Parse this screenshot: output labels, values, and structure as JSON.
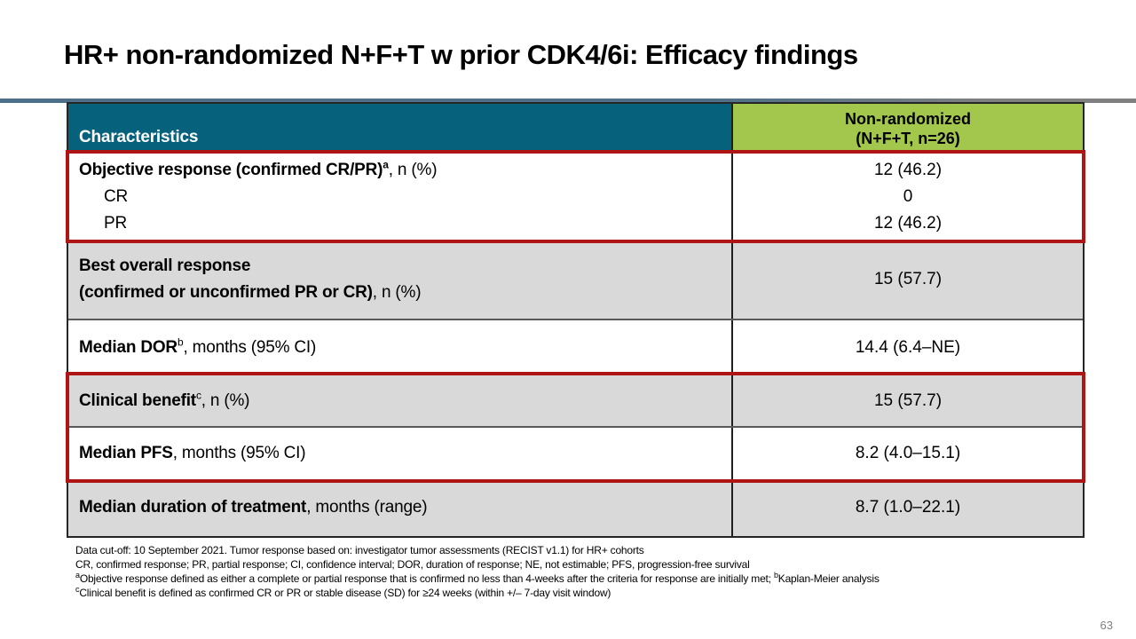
{
  "slide": {
    "title": "HR+ non-randomized N+F+T w prior CDK4/6i: Efficacy findings",
    "page_number": "63"
  },
  "table": {
    "header": {
      "characteristics": "Characteristics",
      "cohort_line1": "Non-randomized",
      "cohort_line2": "(N+F+T, n=26)"
    },
    "rows": [
      {
        "label_bold": "Objective response (confirmed CR/PR)",
        "label_sup": "a",
        "label_rest": ", n (%)",
        "value": "12 (46.2)",
        "subrows": [
          {
            "label": "CR",
            "value": "0"
          },
          {
            "label": "PR",
            "value": "12 (46.2)"
          }
        ]
      },
      {
        "label_bold_line1": "Best overall response",
        "label_bold_line2": "(confirmed or unconfirmed PR or CR)",
        "label_rest": ", n (%)",
        "value": "15 (57.7)"
      },
      {
        "label_bold": "Median DOR",
        "label_sup": "b",
        "label_rest": ", months (95% CI)",
        "value": "14.4 (6.4–NE)"
      },
      {
        "label_bold": "Clinical benefit",
        "label_sup": "c",
        "label_rest": ", n (%)",
        "value": "15 (57.7)"
      },
      {
        "label_bold": "Median PFS",
        "label_rest": ", months (95% CI)",
        "value": "8.2 (4.0–15.1)"
      },
      {
        "label_bold": "Median duration of treatment",
        "label_rest": ", months (range)",
        "value": "8.7 (1.0–22.1)"
      }
    ]
  },
  "footnotes": {
    "line1": "Data cut-off: 10 September 2021. Tumor response based on: investigator tumor assessments (RECIST v1.1) for HR+ cohorts",
    "line2": "CR, confirmed response; PR, partial response; CI, confidence interval; DOR, duration of response; NE, not estimable; PFS, progression-free survival",
    "line3_sup_a": "a",
    "line3_part1": "Objective response defined as either a complete or partial response that is confirmed no less than 4-weeks after the criteria for response are initially met; ",
    "line3_sup_b": "b",
    "line3_part2": "Kaplan-Meier analysis",
    "line4_sup_c": "c",
    "line4": "Clinical benefit is defined as confirmed CR or PR or stable disease (SD) for ≥24 weeks (within +/– 7-day visit window)"
  },
  "colors": {
    "header_teal": "#06617D",
    "header_green": "#A3C74C",
    "row_gray": "#D9D9D9",
    "highlight_red": "#B01515",
    "rule_blue_left": "#4C7089",
    "rule_gray_right": "#808080",
    "page_number_gray": "#7F7F7F"
  }
}
